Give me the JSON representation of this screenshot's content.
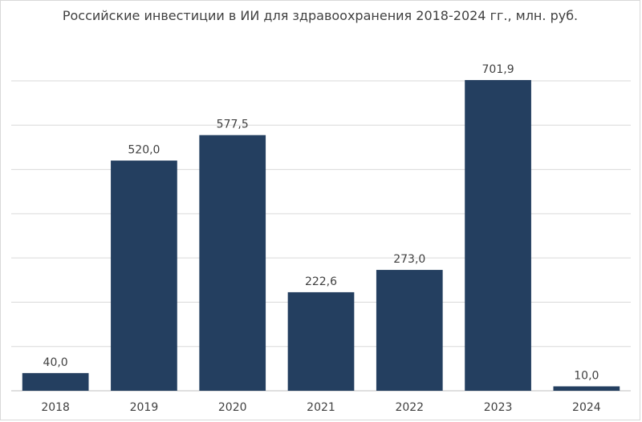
{
  "chart_data": {
    "type": "bar",
    "title": "Российские инвестиции в ИИ для здравоохранения 2018-2024 гг., млн. руб.",
    "xlabel": "",
    "ylabel": "",
    "categories": [
      "2018",
      "2019",
      "2020",
      "2021",
      "2022",
      "2023",
      "2024"
    ],
    "values": [
      40.0,
      520.0,
      577.5,
      222.6,
      273.0,
      701.9,
      10.0
    ],
    "value_labels": [
      "40,0",
      "520,0",
      "577,5",
      "222,6",
      "273,0",
      "701,9",
      "10,0"
    ],
    "ylim": [
      0,
      700
    ],
    "y_axis_labels_visible": false,
    "grid": true,
    "legend": "none",
    "bar_color": "#243f60"
  }
}
